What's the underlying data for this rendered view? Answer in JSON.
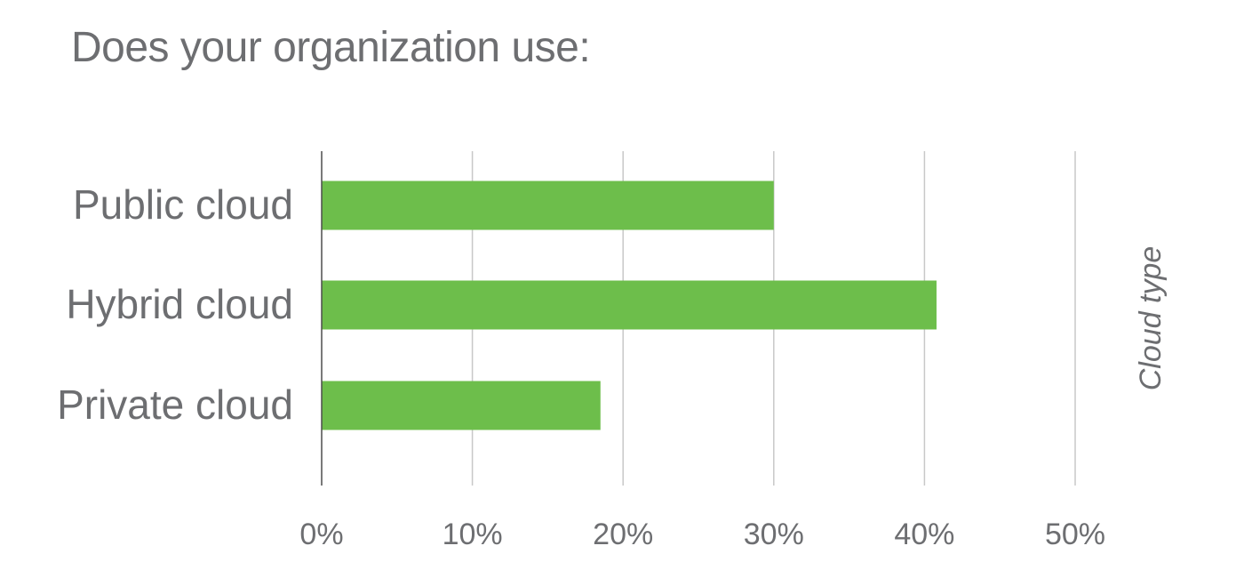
{
  "title": "Does your organization use:",
  "chart_data": {
    "type": "bar",
    "orientation": "horizontal",
    "categories": [
      "Public cloud",
      "Hybrid cloud",
      "Private cloud"
    ],
    "values": [
      30,
      40.8,
      18.5
    ],
    "xlim": [
      0,
      50
    ],
    "x_ticks": [
      0,
      10,
      20,
      30,
      40,
      50
    ],
    "x_tick_labels": [
      "0%",
      "10%",
      "20%",
      "30%",
      "40%",
      "50%"
    ],
    "xlabel": "",
    "ylabel": "Cloud type",
    "grid": "vertical",
    "legend": "none",
    "bar_color": "#6dbe4b",
    "grid_color": "#c8c8c8",
    "axis_color": "#4d4d4d",
    "text_color": "#6d6e71"
  }
}
